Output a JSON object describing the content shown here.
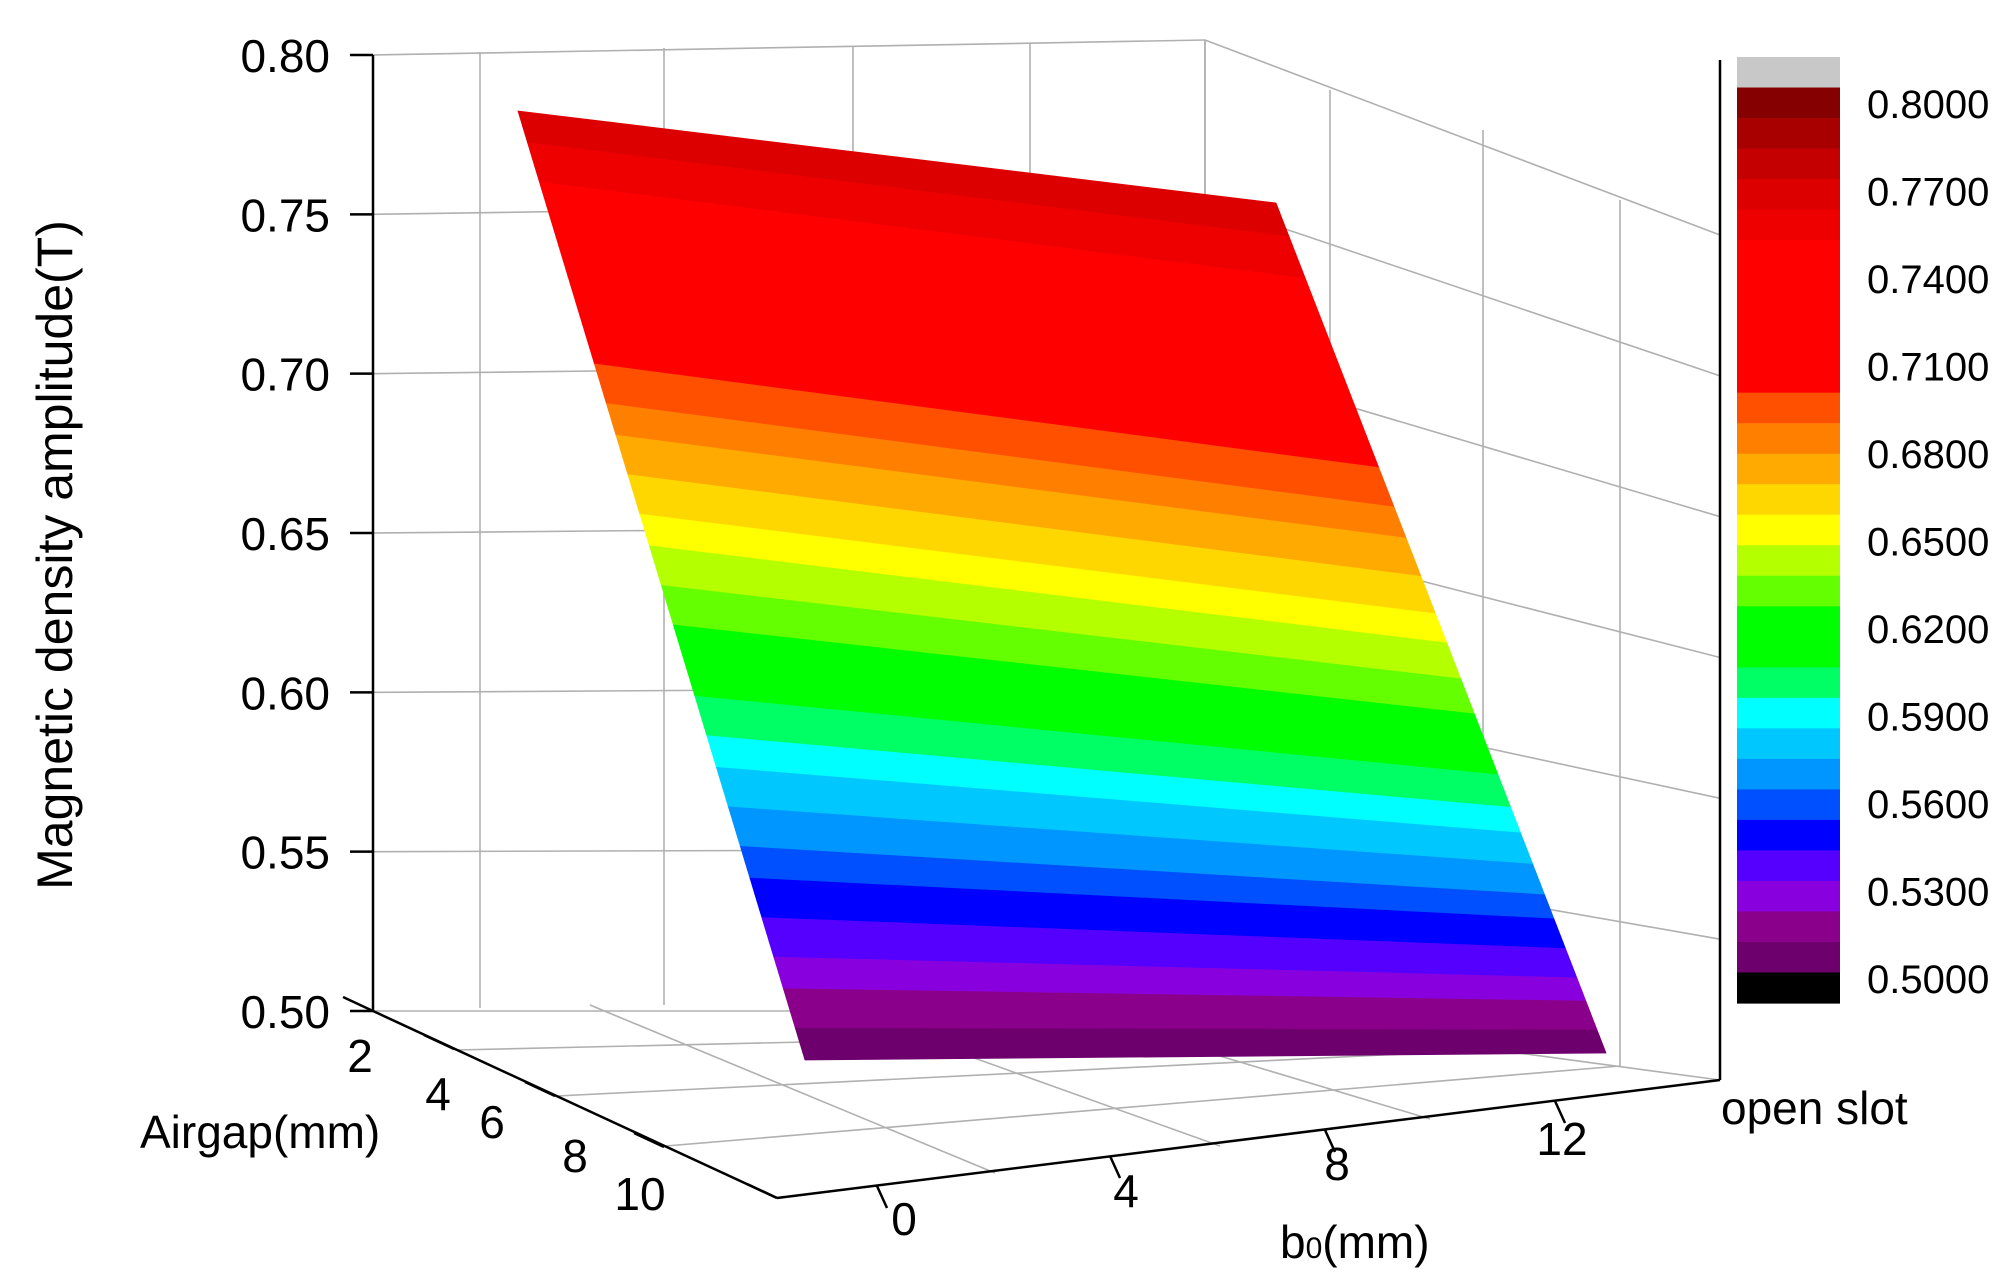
{
  "chart_data": {
    "type": "surface3d",
    "title": "",
    "zlabel": "Magnetic density amplitude(T)",
    "xlabel": "b0(mm)",
    "xlabel_main": "b",
    "xlabel_sub": "0",
    "xlabel_rest": "(mm)",
    "ylabel": "Airgap(mm)",
    "z_ticks": [
      "0.80",
      "0.75",
      "0.70",
      "0.65",
      "0.60",
      "0.55",
      "0.50"
    ],
    "zlim": [
      0.5,
      0.8
    ],
    "x_ticks": [
      "0",
      "4",
      "8",
      "12"
    ],
    "x_extra_label": "open slot",
    "y_ticks": [
      "2",
      "4",
      "6",
      "8",
      "10"
    ],
    "grid": true,
    "colorbar": {
      "labels": [
        "0.8000",
        "0.7700",
        "0.7400",
        "0.7100",
        "0.6800",
        "0.6500",
        "0.6200",
        "0.5900",
        "0.5600",
        "0.5300",
        "0.5000"
      ],
      "levels": [
        {
          "from": 0.5,
          "to": 0.51,
          "color": "#000000"
        },
        {
          "from": 0.51,
          "to": 0.52,
          "color": "#6e006e"
        },
        {
          "from": 0.52,
          "to": 0.53,
          "color": "#8b008b"
        },
        {
          "from": 0.53,
          "to": 0.54,
          "color": "#8800dd"
        },
        {
          "from": 0.54,
          "to": 0.55,
          "color": "#5500ff"
        },
        {
          "from": 0.55,
          "to": 0.56,
          "color": "#0000ff"
        },
        {
          "from": 0.56,
          "to": 0.57,
          "color": "#0050ff"
        },
        {
          "from": 0.57,
          "to": 0.58,
          "color": "#0096ff"
        },
        {
          "from": 0.58,
          "to": 0.59,
          "color": "#00c8ff"
        },
        {
          "from": 0.59,
          "to": 0.6,
          "color": "#00ffff"
        },
        {
          "from": 0.6,
          "to": 0.61,
          "color": "#00ff64"
        },
        {
          "from": 0.61,
          "to": 0.62,
          "color": "#00ff00"
        },
        {
          "from": 0.62,
          "to": 0.63,
          "color": "#00ff00"
        },
        {
          "from": 0.63,
          "to": 0.64,
          "color": "#64ff00"
        },
        {
          "from": 0.64,
          "to": 0.65,
          "color": "#b4ff00"
        },
        {
          "from": 0.65,
          "to": 0.66,
          "color": "#ffff00"
        },
        {
          "from": 0.66,
          "to": 0.67,
          "color": "#ffd700"
        },
        {
          "from": 0.67,
          "to": 0.68,
          "color": "#ffaa00"
        },
        {
          "from": 0.68,
          "to": 0.69,
          "color": "#ff8000"
        },
        {
          "from": 0.69,
          "to": 0.7,
          "color": "#ff5000"
        },
        {
          "from": 0.7,
          "to": 0.71,
          "color": "#ff0000"
        },
        {
          "from": 0.71,
          "to": 0.72,
          "color": "#ff0000"
        },
        {
          "from": 0.72,
          "to": 0.73,
          "color": "#ff0000"
        },
        {
          "from": 0.73,
          "to": 0.74,
          "color": "#ff0000"
        },
        {
          "from": 0.74,
          "to": 0.75,
          "color": "#ff0000"
        },
        {
          "from": 0.75,
          "to": 0.76,
          "color": "#ee0000"
        },
        {
          "from": 0.76,
          "to": 0.77,
          "color": "#dd0000"
        },
        {
          "from": 0.77,
          "to": 0.78,
          "color": "#c40000"
        },
        {
          "from": 0.78,
          "to": 0.79,
          "color": "#a80000"
        },
        {
          "from": 0.79,
          "to": 0.8,
          "color": "#850000"
        },
        {
          "from": 0.8,
          "to": 0.81,
          "color": "#c8c8c8"
        }
      ]
    },
    "surface": {
      "top_edge": [
        {
          "b0": 0,
          "airgap": 2,
          "value": 0.783
        },
        {
          "b0": 13,
          "airgap": 2,
          "value": 0.754
        }
      ],
      "bottom_edge": [
        {
          "b0": 0,
          "airgap": 10,
          "value": 0.503
        },
        {
          "b0": 13,
          "airgap": 10,
          "value": 0.52
        }
      ]
    }
  }
}
